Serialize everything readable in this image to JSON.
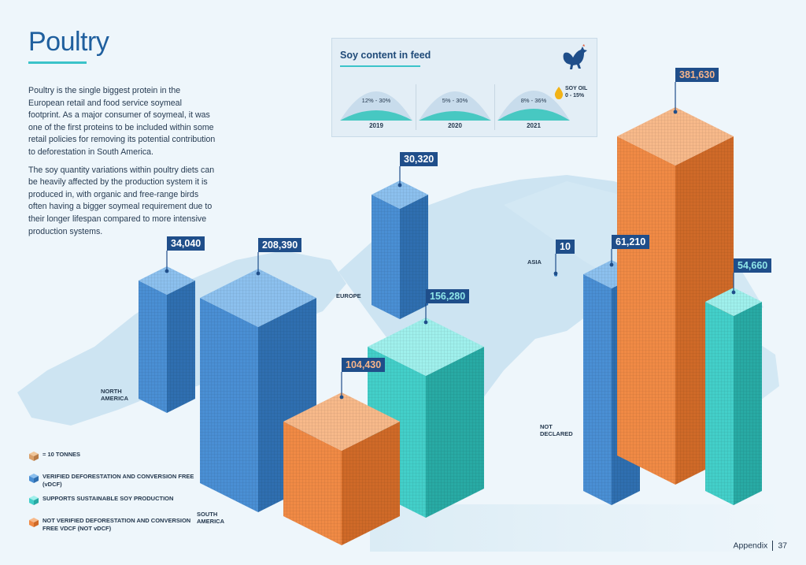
{
  "title": "Poultry",
  "intro": {
    "p1": "Poultry is the single biggest protein in the European retail and food service soymeal footprint. As a major consumer of soymeal, it was one of the first proteins to be included within some retail policies for removing its potential contribution to deforestation in South America.",
    "p2": "The soy quantity variations within poultry diets can be heavily affected by the production system it is produced in, with organic and free-range birds often having a bigger soymeal requirement due to their longer lifespan compared to more intensive production systems."
  },
  "feed": {
    "title": "Soy content in feed",
    "years": [
      {
        "year": "2019",
        "range": "12% - 30%"
      },
      {
        "year": "2020",
        "range": "5% - 30%"
      },
      {
        "year": "2021",
        "range": "8% - 36%"
      }
    ],
    "soy_oil_label": "SOY OIL",
    "soy_oil_range": "0 - 15%"
  },
  "chart_data": {
    "type": "bar",
    "unit_note": "1 cube = 10 tonnes",
    "categories": [
      "NORTH AMERICA",
      "SOUTH AMERICA",
      "EUROPE",
      "ASIA",
      "NOT DECLARED"
    ],
    "series": [
      {
        "name": "VERIFIED DEFORESTATION AND CONVERSION FREE (vDCF)",
        "values": [
          34040,
          208390,
          30320,
          10,
          61210
        ]
      },
      {
        "name": "SUPPORTS SUSTAINABLE SOY PRODUCTION",
        "values": [
          null,
          null,
          156280,
          null,
          54660
        ]
      },
      {
        "name": "NOT VERIFIED DEFORESTATION AND CONVERSION FREE VDCF (NOT vDCF)",
        "values": [
          null,
          104430,
          null,
          null,
          381630
        ]
      }
    ],
    "labels": {
      "na_blue": "34,040",
      "sa_blue": "208,390",
      "eu_blue": "30,320",
      "asia_blue": "10",
      "nd_blue": "61,210",
      "eu_teal": "156,280",
      "nd_teal": "54,660",
      "sa_orange": "104,430",
      "nd_orange": "381,630"
    }
  },
  "regions": {
    "north_america_1": "NORTH",
    "north_america_2": "AMERICA",
    "south_america_1": "SOUTH",
    "south_america_2": "AMERICA",
    "europe": "EUROPE",
    "asia": "ASIA",
    "not_declared_1": "NOT",
    "not_declared_2": "DECLARED"
  },
  "legend": {
    "unit": "= 10 TONNES",
    "vdcf": "VERIFIED DEFORESTATION AND CONVERSION FREE (vDCF)",
    "sustainable": "SUPPORTS SUSTAINABLE SOY PRODUCTION",
    "not_vdcf": "NOT VERIFIED DEFORESTATION AND CONVERSION FREE VDCF (NOT vDCF)"
  },
  "colors": {
    "blue": "#4a8fd4",
    "teal": "#43cfc9",
    "orange": "#f08a45",
    "unit_cube": "#d9a06a",
    "label_bg": "#1f4e8a",
    "map": "#c9e2f1"
  },
  "footer": {
    "section": "Appendix",
    "page": "37"
  }
}
